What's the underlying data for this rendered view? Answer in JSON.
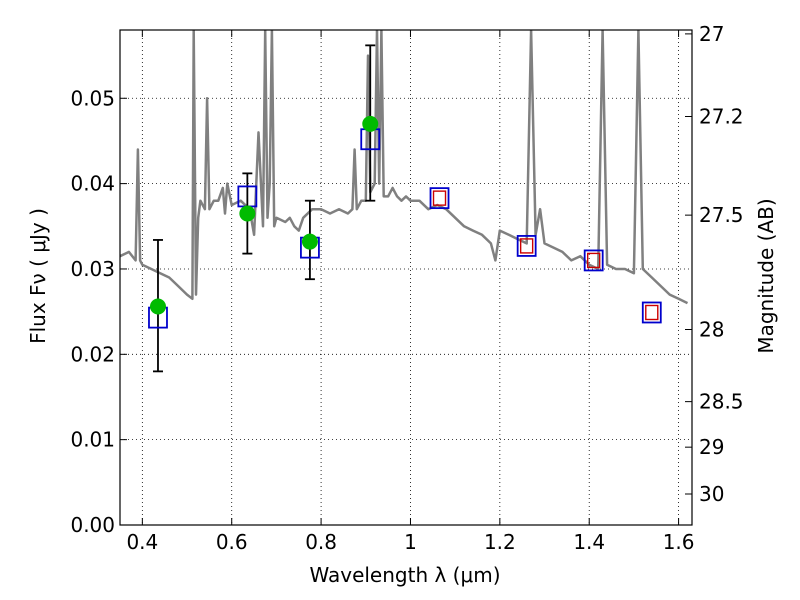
{
  "chart_data": {
    "type": "scatter",
    "xlabel": "Wavelength  λ (μm)",
    "ylabel": "Flux  Fν  ( μJy )",
    "y2label": "Magnitude (AB)",
    "xlim": [
      0.35,
      1.63
    ],
    "ylim": [
      0.0,
      0.058
    ],
    "grid": true,
    "x_ticks": [
      0.4,
      0.6,
      0.8,
      1.0,
      1.2,
      1.4,
      1.6
    ],
    "x_tick_labels": [
      "0.4",
      "0.6",
      "0.8",
      "1",
      "1.2",
      "1.4",
      "1.6"
    ],
    "y_ticks": [
      0.0,
      0.01,
      0.02,
      0.03,
      0.04,
      0.05
    ],
    "y_tick_labels": [
      "0.00",
      "0.01",
      "0.02",
      "0.03",
      "0.04",
      "0.05"
    ],
    "y2_ticks": [
      {
        "label": "27",
        "mag": 27.0
      },
      {
        "label": "27.2",
        "mag": 27.2
      },
      {
        "label": "27.5",
        "mag": 27.5
      },
      {
        "label": "28",
        "mag": 28.0
      },
      {
        "label": "28.5",
        "mag": 28.5
      },
      {
        "label": "29",
        "mag": 29.0
      },
      {
        "label": "30",
        "mag": 30.0
      }
    ],
    "series": [
      {
        "kind": "line",
        "color": "#808080",
        "x": [
          0.35,
          0.37,
          0.385,
          0.39,
          0.395,
          0.4,
          0.42,
          0.44,
          0.46,
          0.48,
          0.5,
          0.512,
          0.515,
          0.52,
          0.525,
          0.53,
          0.54,
          0.545,
          0.55,
          0.56,
          0.57,
          0.58,
          0.585,
          0.59,
          0.6,
          0.62,
          0.64,
          0.65,
          0.66,
          0.67,
          0.675,
          0.68,
          0.685,
          0.69,
          0.695,
          0.7,
          0.72,
          0.73,
          0.74,
          0.75,
          0.76,
          0.78,
          0.8,
          0.82,
          0.84,
          0.86,
          0.87,
          0.875,
          0.88,
          0.89,
          0.9,
          0.905,
          0.91,
          0.92,
          0.925,
          0.93,
          0.935,
          0.94,
          0.95,
          0.96,
          0.97,
          0.98,
          0.99,
          1.0,
          1.02,
          1.04,
          1.06,
          1.08,
          1.1,
          1.12,
          1.14,
          1.16,
          1.18,
          1.19,
          1.2,
          1.22,
          1.24,
          1.26,
          1.27,
          1.28,
          1.29,
          1.3,
          1.32,
          1.34,
          1.36,
          1.38,
          1.4,
          1.42,
          1.43,
          1.44,
          1.46,
          1.48,
          1.5,
          1.51,
          1.52,
          1.54,
          1.56,
          1.58,
          1.6,
          1.62
        ],
        "y": [
          0.0315,
          0.032,
          0.031,
          0.044,
          0.031,
          0.0305,
          0.03,
          0.0295,
          0.029,
          0.028,
          0.027,
          0.0265,
          0.058,
          0.027,
          0.036,
          0.038,
          0.037,
          0.05,
          0.037,
          0.038,
          0.038,
          0.0395,
          0.0365,
          0.04,
          0.0375,
          0.038,
          0.037,
          0.034,
          0.046,
          0.035,
          0.058,
          0.036,
          0.04,
          0.058,
          0.035,
          0.036,
          0.0355,
          0.036,
          0.035,
          0.0345,
          0.036,
          0.037,
          0.037,
          0.0365,
          0.037,
          0.0365,
          0.037,
          0.044,
          0.037,
          0.038,
          0.038,
          0.055,
          0.039,
          0.04,
          0.058,
          0.04,
          0.058,
          0.0385,
          0.0385,
          0.0395,
          0.0385,
          0.038,
          0.0385,
          0.038,
          0.038,
          0.037,
          0.0375,
          0.037,
          0.036,
          0.035,
          0.0345,
          0.034,
          0.033,
          0.031,
          0.0345,
          0.034,
          0.0335,
          0.033,
          0.058,
          0.034,
          0.037,
          0.033,
          0.0325,
          0.032,
          0.031,
          0.0315,
          0.0305,
          0.03,
          0.058,
          0.0305,
          0.03,
          0.03,
          0.0295,
          0.058,
          0.03,
          0.029,
          0.028,
          0.027,
          0.0265,
          0.026
        ]
      },
      {
        "kind": "points",
        "marker": "circle",
        "color": "#00bb00",
        "x": [
          0.435,
          0.635,
          0.775,
          0.91
        ],
        "y": [
          0.0256,
          0.0365,
          0.0332,
          0.047
        ],
        "yerr_low": [
          0.018,
          0.0318,
          0.0288,
          0.038
        ],
        "yerr_high": [
          0.0334,
          0.0412,
          0.038,
          0.0562
        ]
      },
      {
        "kind": "points",
        "marker": "square",
        "color": "#0000cc",
        "x": [
          0.435,
          0.635,
          0.775,
          0.91,
          1.065,
          1.26,
          1.41,
          1.54
        ],
        "y": [
          0.0243,
          0.0385,
          0.0325,
          0.0452,
          0.0383,
          0.0327,
          0.031,
          0.0249
        ]
      },
      {
        "kind": "points",
        "marker": "square-small",
        "color": "#cc0000",
        "x": [
          1.065,
          1.26,
          1.41,
          1.54
        ],
        "y": [
          0.0383,
          0.0327,
          0.031,
          0.0249
        ]
      }
    ]
  }
}
